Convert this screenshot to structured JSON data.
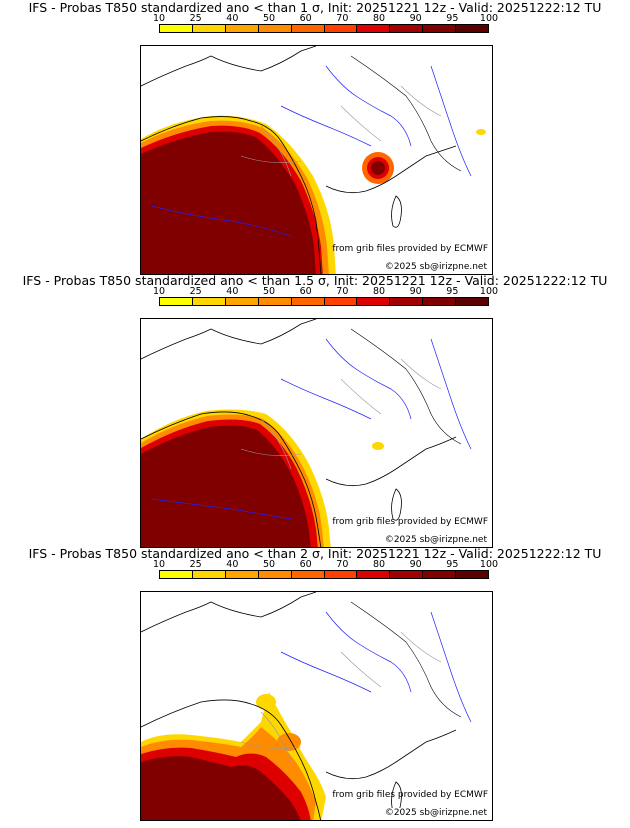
{
  "colorbar": {
    "ticks": [
      "10",
      "25",
      "40",
      "50",
      "60",
      "70",
      "80",
      "90",
      "95",
      "100"
    ],
    "colors": [
      "#ffff00",
      "#ffd700",
      "#ffa500",
      "#ff8c00",
      "#ff6600",
      "#ff4000",
      "#dd0000",
      "#a00000",
      "#800000",
      "#5a0000"
    ]
  },
  "panels": [
    {
      "title": "IFS - Probas T850  standardized ano < than 1 σ, Init: 20251221 12z - Valid: 20251222:12 TU",
      "credit_source": "from grib files provided by ECMWF",
      "credit_copyright": "©2025 sb@irizpne.net"
    },
    {
      "title": "IFS - Probas T850  standardized ano < than 1.5 σ, Init: 20251221 12z - Valid: 20251222:12 TU",
      "credit_source": "from grib files provided by ECMWF",
      "credit_copyright": "©2025 sb@irizpne.net"
    },
    {
      "title": "IFS - Probas T850  standardized ano < than 2 σ, Init: 20251221 12z - Valid: 20251222:12 TU",
      "credit_source": "from grib files provided by ECMWF",
      "credit_copyright": "©2025 sb@irizpne.net"
    }
  ]
}
